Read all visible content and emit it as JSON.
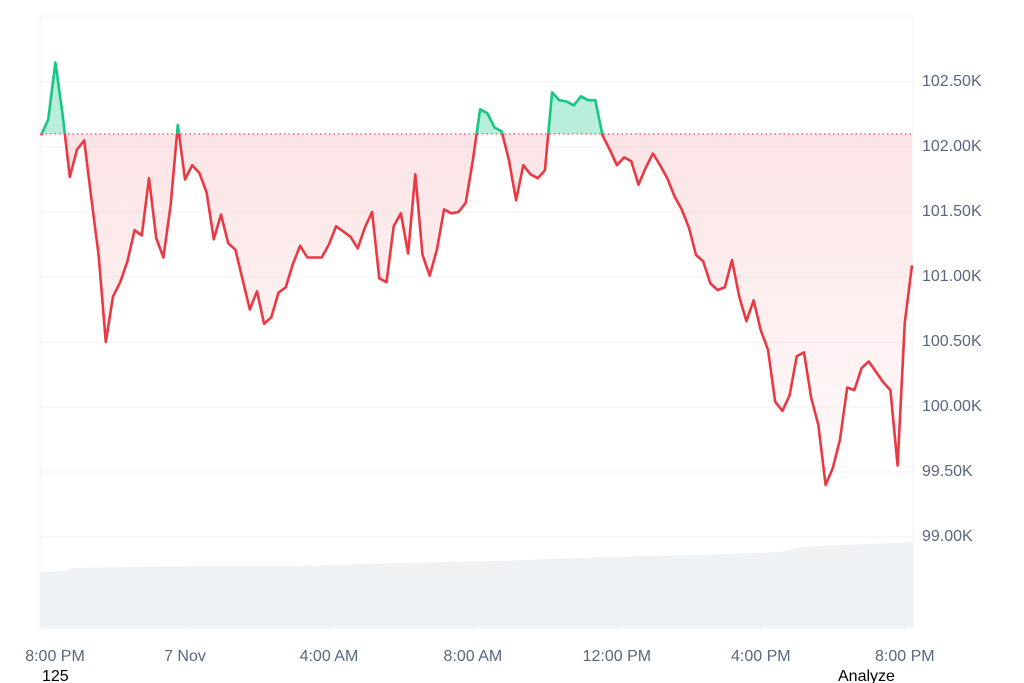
{
  "chart_data": {
    "type": "line",
    "x": [
      0,
      0.2,
      0.4,
      0.6,
      0.8,
      1,
      1.2,
      1.4,
      1.6,
      1.8,
      2,
      2.2,
      2.4,
      2.6,
      2.8,
      3,
      3.2,
      3.4,
      3.6,
      3.8,
      4,
      4.2,
      4.4,
      4.6,
      4.8,
      5,
      5.2,
      5.4,
      5.6,
      5.8,
      6,
      6.2,
      6.4,
      6.6,
      6.8,
      7,
      7.2,
      7.4,
      7.6,
      7.8,
      8,
      8.2,
      8.4,
      8.6,
      8.8,
      9,
      9.2,
      9.4,
      9.6,
      9.8,
      10,
      10.2,
      10.4,
      10.6,
      10.8,
      11,
      11.2,
      11.4,
      11.6,
      11.8,
      12,
      12.2,
      12.4,
      12.6,
      12.8,
      13,
      13.2,
      13.4,
      13.6,
      13.8,
      14,
      14.2,
      14.4,
      14.6,
      14.8,
      15,
      15.2,
      15.4,
      15.6,
      15.8,
      16,
      16.2,
      16.4,
      16.6,
      16.8,
      17,
      17.2,
      17.4,
      17.6,
      17.8,
      18,
      18.2,
      18.4,
      18.6,
      18.8,
      19,
      19.2,
      19.4,
      19.6,
      19.8,
      20,
      20.2,
      20.4,
      20.6,
      20.8,
      21,
      21.2,
      21.4,
      21.6,
      21.8,
      22,
      22.2,
      22.4,
      22.6,
      22.8,
      23,
      23.2,
      23.4,
      23.6,
      23.8,
      24,
      24.2
    ],
    "values": [
      102090,
      102210,
      102650,
      102250,
      101770,
      101980,
      102050,
      101600,
      101170,
      100500,
      100850,
      100960,
      101120,
      101360,
      101320,
      101760,
      101300,
      101150,
      101550,
      102170,
      101750,
      101860,
      101800,
      101650,
      101290,
      101480,
      101260,
      101210,
      100980,
      100750,
      100890,
      100640,
      100690,
      100880,
      100920,
      101100,
      101240,
      101150,
      101150,
      101150,
      101250,
      101390,
      101350,
      101310,
      101220,
      101380,
      101500,
      100990,
      100960,
      101390,
      101490,
      101180,
      101790,
      101170,
      101010,
      101210,
      101520,
      101490,
      101500,
      101570,
      101900,
      102290,
      102260,
      102150,
      102120,
      101900,
      101590,
      101860,
      101790,
      101760,
      101820,
      102420,
      102360,
      102350,
      102320,
      102390,
      102360,
      102360,
      102090,
      101980,
      101860,
      101920,
      101890,
      101710,
      101840,
      101950,
      101860,
      101760,
      101620,
      101520,
      101380,
      101170,
      101120,
      100950,
      100900,
      100920,
      101130,
      100850,
      100660,
      100820,
      100590,
      100440,
      100040,
      99970,
      100090,
      100390,
      100420,
      100070,
      99860,
      99400,
      99530,
      99750,
      100150,
      100130,
      100300,
      100350,
      100270,
      100190,
      100130,
      99550,
      100650,
      101090
    ],
    "baseline": 102100,
    "colors": {
      "above": "#16c784",
      "below": "#ea3943"
    },
    "xlim": [
      0,
      24.2
    ],
    "xticks": [
      {
        "value": 0,
        "label": "8:00 PM"
      },
      {
        "value": 4,
        "label": "7 Nov"
      },
      {
        "value": 8,
        "label": "4:00 AM"
      },
      {
        "value": 12,
        "label": "8:00 AM"
      },
      {
        "value": 16,
        "label": "12:00 PM"
      },
      {
        "value": 20,
        "label": "4:00 PM"
      },
      {
        "value": 24,
        "label": "8:00 PM"
      }
    ],
    "ylim": [
      98300,
      103015
    ],
    "yticks": [
      {
        "value": 99000,
        "label": "99.00K"
      },
      {
        "value": 99500,
        "label": "99.50K"
      },
      {
        "value": 100000,
        "label": "100.00K"
      },
      {
        "value": 100500,
        "label": "100.50K"
      },
      {
        "value": 101000,
        "label": "101.00K"
      },
      {
        "value": 101500,
        "label": "101.50K"
      },
      {
        "value": 102000,
        "label": "102.00K"
      },
      {
        "value": 102500,
        "label": "102.50K"
      }
    ],
    "grid": true,
    "footer_left": "125",
    "footer_right": "Analyze"
  }
}
